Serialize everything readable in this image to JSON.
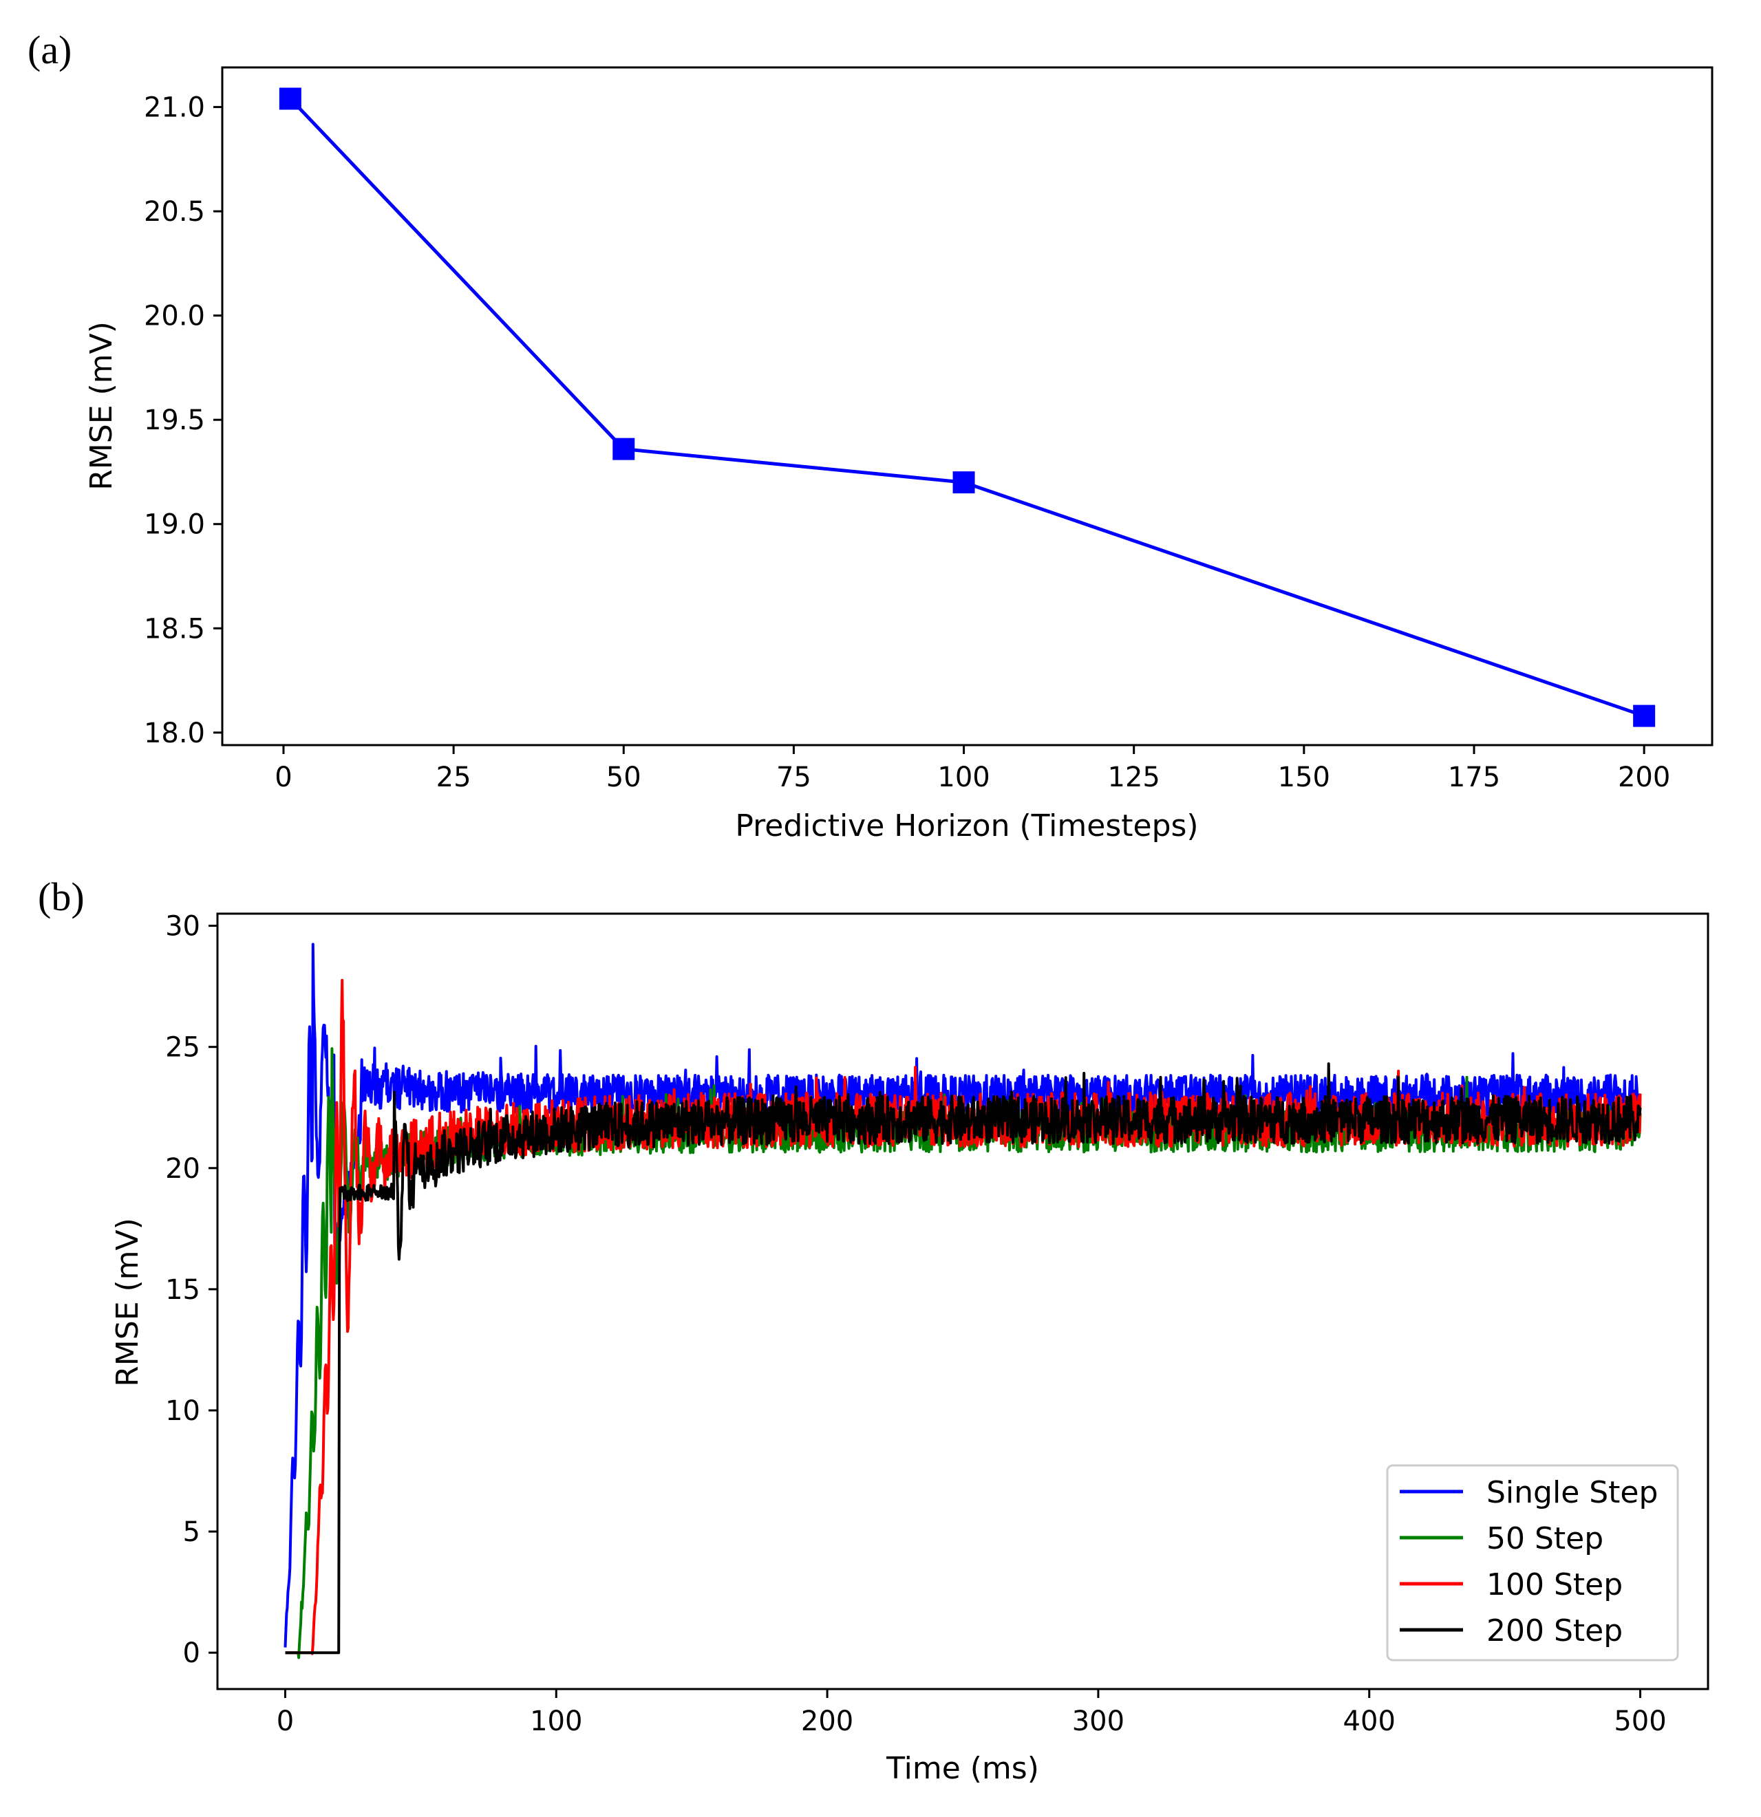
{
  "chart_data": [
    {
      "panel": "(a)",
      "type": "line",
      "title": "",
      "xlabel": "Predictive Horizon (Timesteps)",
      "ylabel": "RMSE (mV)",
      "xlim": [
        -9,
        210
      ],
      "ylim": [
        17.94,
        21.19
      ],
      "xticks": [
        0,
        25,
        50,
        75,
        100,
        125,
        150,
        175,
        200
      ],
      "yticks": [
        18.0,
        18.5,
        19.0,
        19.5,
        20.0,
        20.5,
        21.0
      ],
      "ytick_labels": [
        "18.0",
        "18.5",
        "19.0",
        "19.5",
        "20.0",
        "20.5",
        "21.0"
      ],
      "grid": false,
      "marker": "square",
      "color": "#0000ff",
      "x": [
        1,
        50,
        100,
        200
      ],
      "y": [
        21.04,
        19.36,
        19.2,
        18.08
      ]
    },
    {
      "panel": "(b)",
      "type": "line",
      "title": "",
      "xlabel": "Time (ms)",
      "ylabel": "RMSE (mV)",
      "xlim": [
        -25,
        525
      ],
      "ylim": [
        -1.5,
        30.5
      ],
      "xticks": [
        0,
        100,
        200,
        300,
        400,
        500
      ],
      "yticks": [
        0,
        5,
        10,
        15,
        20,
        25,
        30
      ],
      "grid": false,
      "legend_position": "lower right",
      "series": [
        {
          "name": "Single Step",
          "color": "#0000ff",
          "onset": 0,
          "peak": 29.0,
          "peak_t": 10,
          "settle": 23.0,
          "noise": 0.6
        },
        {
          "name": "50 Step",
          "color": "#008000",
          "onset": 5,
          "peak": 25.0,
          "peak_t": 17,
          "settle": 21.5,
          "noise": 0.6
        },
        {
          "name": "100 Step",
          "color": "#ff0000",
          "onset": 10,
          "peak": 27.5,
          "peak_t": 21,
          "settle": 22.0,
          "noise": 0.8
        },
        {
          "name": "200 Step",
          "color": "#000000",
          "onset": 20,
          "peak": 23.3,
          "peak_t": 40,
          "settle": 22.0,
          "noise": 0.7
        }
      ]
    }
  ]
}
